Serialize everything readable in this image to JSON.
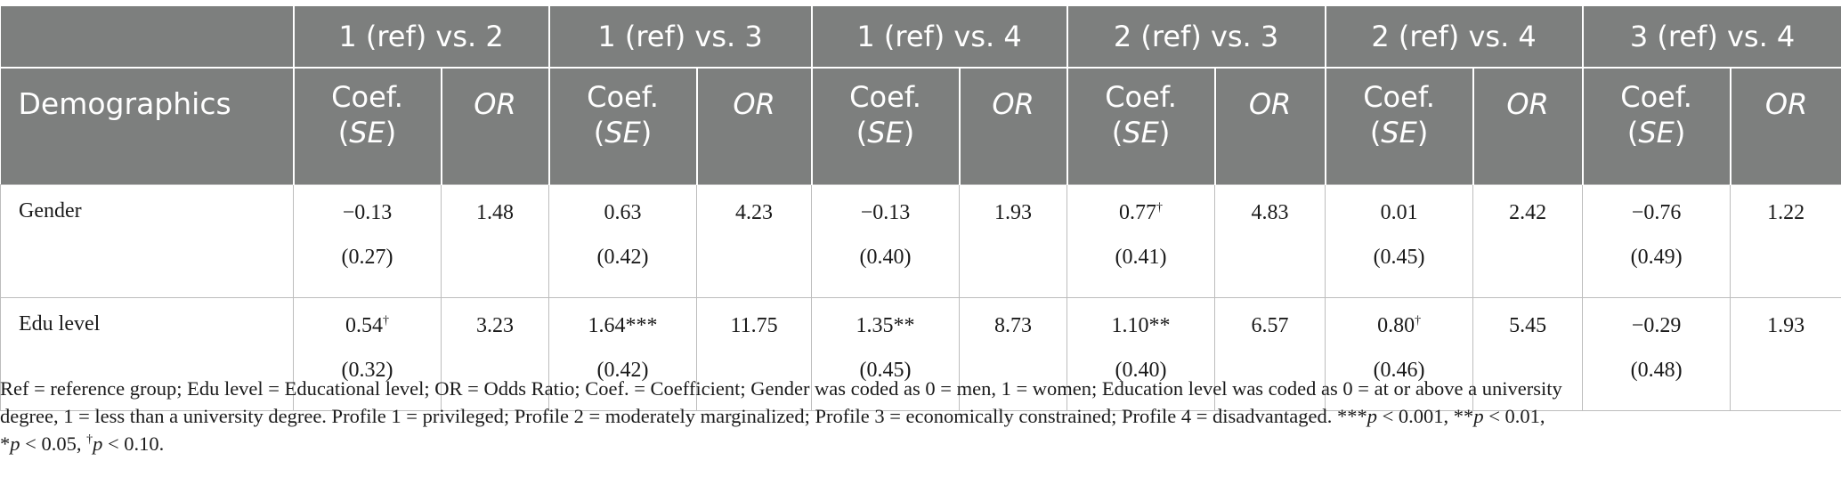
{
  "table": {
    "row_header": "Demographics",
    "groups": [
      "1 (ref) vs. 2",
      "1 (ref) vs. 3",
      "1 (ref) vs. 4",
      "2 (ref) vs. 3",
      "2 (ref) vs. 4",
      "3 (ref) vs. 4"
    ],
    "subheaders": {
      "coef_line1": "Coef.",
      "coef_se": "SE",
      "or": "OR"
    },
    "rows": [
      {
        "label": "Gender",
        "cells": [
          {
            "coef": "−0.13",
            "sig": "",
            "se": "(0.27)",
            "or": "1.48"
          },
          {
            "coef": "0.63",
            "sig": "",
            "se": "(0.42)",
            "or": "4.23"
          },
          {
            "coef": "−0.13",
            "sig": "",
            "se": "(0.40)",
            "or": "1.93"
          },
          {
            "coef": "0.77",
            "sig": "†",
            "se": "(0.41)",
            "or": "4.83"
          },
          {
            "coef": "0.01",
            "sig": "",
            "se": "(0.45)",
            "or": "2.42"
          },
          {
            "coef": "−0.76",
            "sig": "",
            "se": "(0.49)",
            "or": "1.22"
          }
        ]
      },
      {
        "label": "Edu level",
        "cells": [
          {
            "coef": "0.54",
            "sig": "†",
            "se": "(0.32)",
            "or": "3.23"
          },
          {
            "coef": "1.64***",
            "sig": "",
            "se": "(0.42)",
            "or": "11.75"
          },
          {
            "coef": "1.35**",
            "sig": "",
            "se": "(0.45)",
            "or": "8.73"
          },
          {
            "coef": "1.10**",
            "sig": "",
            "se": "(0.40)",
            "or": "6.57"
          },
          {
            "coef": "0.80",
            "sig": "†",
            "se": "(0.46)",
            "or": "5.45"
          },
          {
            "coef": "−0.29",
            "sig": "",
            "se": "(0.48)",
            "or": "1.93"
          }
        ]
      }
    ]
  },
  "footnote": {
    "line1": "Ref = reference group; Edu level = Educational level; OR = Odds Ratio; Coef. = Coefficient; Gender was coded as 0 = men, 1 = women; Education level was coded as 0 = at or above a university",
    "line2_text": "degree, 1 = less than a university degree. Profile 1 = privileged; Profile 2 = moderately marginalized; Profile 3 = economically constrained; Profile 4 = disadvantaged. ***",
    "p": "p",
    "lt001": " < 0.001, **",
    "lt01": " < 0.01,",
    "star": "*",
    "lt05": " < 0.05, ",
    "dagger": "†",
    "lt10": " < 0.10."
  },
  "colors": {
    "header_bg": "#7d7f7e",
    "header_text": "#ffffff",
    "grid": "#bdbdbd"
  }
}
